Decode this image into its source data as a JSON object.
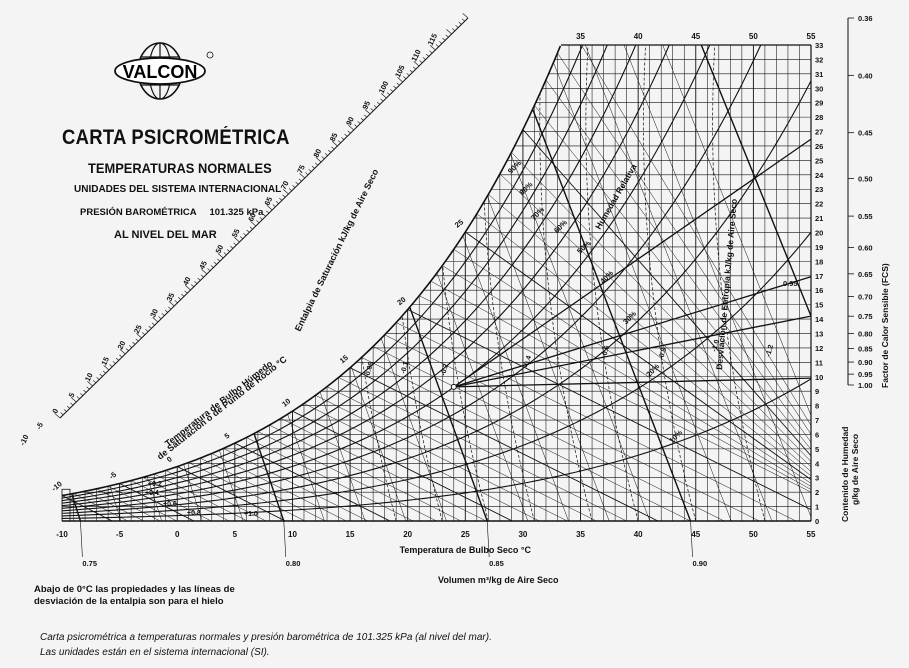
{
  "header": {
    "logo_text": "VALCON",
    "title": "CARTA PSICROMÉTRICA",
    "subtitle": "TEMPERATURAS NORMALES",
    "units": "UNIDADES DEL SISTEMA INTERNACIONAL",
    "pressure": "PRESIÓN BAROMÉTRICA     101.325 kPa",
    "altitude": "AL NIVEL DEL MAR"
  },
  "notes": {
    "ice": "Abajo de 0°C las propiedades y las líneas de desviación de la entalpia son para el hielo"
  },
  "caption": {
    "line1": "Carta psicrométrica a temperaturas normales y presión barométrica de 101.325 kPa (al nivel del mar).",
    "line2": "Las unidades están en el sistema internacional (SI)."
  },
  "chart_data": {
    "type": "psychrometric",
    "xlabel": "Temperatura de Bulbo Seco   °C",
    "ylabel": "Contenido de Humedad g/kg de Aire Seco",
    "xlim": [
      -10,
      55
    ],
    "ylim": [
      0,
      33
    ],
    "x_ticks": [
      -10,
      -5,
      0,
      5,
      10,
      15,
      20,
      25,
      30,
      35,
      40,
      45,
      50,
      55
    ],
    "top_ticks": [
      35,
      40,
      45,
      50,
      55
    ],
    "y_ticks": [
      0,
      1,
      2,
      3,
      4,
      5,
      6,
      7,
      8,
      9,
      10,
      11,
      12,
      13,
      14,
      15,
      16,
      17,
      18,
      19,
      20,
      21,
      22,
      23,
      24,
      25,
      26,
      27,
      28,
      29,
      30,
      31,
      32,
      33
    ],
    "enthalpy_label": "Entalpia de Saturación   kJ/kg de Aire Seco",
    "enthalpy_ticks": [
      -10,
      -5,
      0,
      5,
      10,
      15,
      20,
      25,
      30,
      35,
      40,
      45,
      50,
      55,
      60,
      65,
      70,
      75,
      80,
      85,
      90,
      95,
      100,
      105,
      110,
      115
    ],
    "wet_bulb_label": "Temperatura de Bulbo Húmedo de Saturación o de Punto de Rocío   °C",
    "wet_bulb_ticks": [
      -10,
      -5,
      0,
      5,
      10,
      15,
      20,
      25,
      30
    ],
    "rh_label": "Humedad Relativa",
    "rh_values": [
      "10%",
      "20%",
      "30%",
      "40%",
      "50%",
      "60%",
      "70%",
      "80%",
      "90%"
    ],
    "volume_label": "Volumen    m³/kg de Aire Seco",
    "volume_ticks": [
      "0.75",
      "0.80",
      "0.85",
      "0.90"
    ],
    "enthalpy_dev_label": "Desviación de Entropía   kJ/kg de Aire Seco",
    "enthalpy_dev_values": [
      "-1.0",
      "-0.8",
      "-0.6",
      "-0.4",
      "-0.2",
      "-0.1",
      "-0.06",
      "+0.2",
      "+0.4",
      "+0.6",
      "+0.8",
      "+1.0",
      "-1.2"
    ],
    "sensible_heat_label": "Factor de Calor Sensible  (FCS)",
    "shf_ticks": [
      "0.36",
      "0.40",
      "0.45",
      "0.50",
      "0.55",
      "0.60",
      "0.65",
      "0.70",
      "0.75",
      "0.80",
      "0.85",
      "0.90",
      "0.95",
      "1.00"
    ],
    "shf_marker": "0.95",
    "grid": true
  }
}
